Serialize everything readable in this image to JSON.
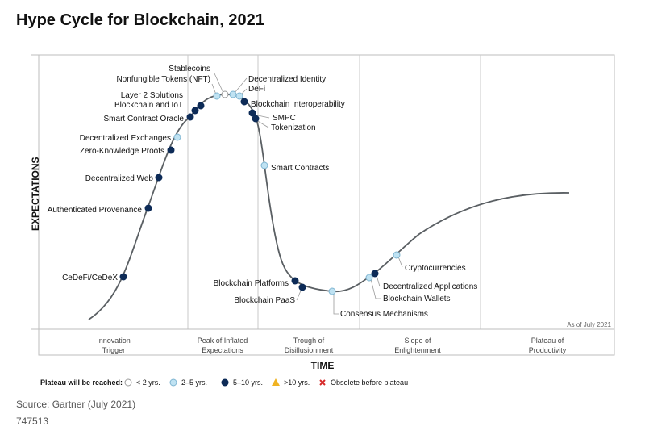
{
  "title": "Hype Cycle for Blockchain, 2021",
  "source": "Source: Gartner (July 2021)",
  "doc_id": "747513",
  "as_of": "As of July 2021",
  "colors": {
    "curve": "#5a5f63",
    "dark": "#0d2b57",
    "light": "#bfe2f2",
    "light_stroke": "#7fb5d1",
    "divider": "#c9c9c9",
    "amber": "#f0b323",
    "red": "#d62828"
  },
  "chart_data": {
    "type": "hype-cycle",
    "ylabel": "EXPECTATIONS",
    "xlabel": "TIME",
    "phases": [
      {
        "line1": "Innovation",
        "line2": "Trigger"
      },
      {
        "line1": "Peak of Inflated",
        "line2": "Expectations"
      },
      {
        "line1": "Trough of",
        "line2": "Disillusionment"
      },
      {
        "line1": "Slope of",
        "line2": "Enlightenment"
      },
      {
        "line1": "Plateau of",
        "line2": "Productivity"
      }
    ],
    "legend": {
      "title": "Plateau will be reached:",
      "items": [
        {
          "key": "lt2",
          "label": "< 2 yrs."
        },
        {
          "key": "2to5",
          "label": "2–5 yrs."
        },
        {
          "key": "5to10",
          "label": "5–10 yrs."
        },
        {
          "key": "gt10",
          "label": ">10 yrs."
        },
        {
          "key": "obsolete",
          "label": "Obsolete before plateau"
        }
      ]
    },
    "technologies": [
      {
        "name": "CeDeFi/CeDeX",
        "phase": "Innovation Trigger",
        "plateau": "5to10"
      },
      {
        "name": "Authenticated Provenance",
        "phase": "Innovation Trigger",
        "plateau": "5to10"
      },
      {
        "name": "Decentralized Web",
        "phase": "Innovation Trigger",
        "plateau": "5to10"
      },
      {
        "name": "Zero-Knowledge Proofs",
        "phase": "Innovation Trigger",
        "plateau": "5to10"
      },
      {
        "name": "Decentralized Exchanges",
        "phase": "Innovation Trigger",
        "plateau": "2to5"
      },
      {
        "name": "Smart Contract Oracle",
        "phase": "Peak of Inflated Expectations",
        "plateau": "5to10"
      },
      {
        "name": "Blockchain and IoT",
        "phase": "Peak of Inflated Expectations",
        "plateau": "5to10"
      },
      {
        "name": "Layer 2 Solutions",
        "phase": "Peak of Inflated Expectations",
        "plateau": "5to10"
      },
      {
        "name": "Nonfungible Tokens (NFT)",
        "phase": "Peak of Inflated Expectations",
        "plateau": "2to5"
      },
      {
        "name": "Stablecoins",
        "phase": "Peak of Inflated Expectations",
        "plateau": "lt2"
      },
      {
        "name": "Decentralized Identity",
        "phase": "Peak of Inflated Expectations",
        "plateau": "2to5"
      },
      {
        "name": "DeFi",
        "phase": "Peak of Inflated Expectations",
        "plateau": "2to5"
      },
      {
        "name": "Blockchain Interoperability",
        "phase": "Peak of Inflated Expectations",
        "plateau": "5to10"
      },
      {
        "name": "SMPC",
        "phase": "Peak of Inflated Expectations",
        "plateau": "5to10"
      },
      {
        "name": "Tokenization",
        "phase": "Peak of Inflated Expectations",
        "plateau": "5to10"
      },
      {
        "name": "Smart Contracts",
        "phase": "Trough of Disillusionment",
        "plateau": "2to5"
      },
      {
        "name": "Blockchain Platforms",
        "phase": "Trough of Disillusionment",
        "plateau": "5to10"
      },
      {
        "name": "Blockchain PaaS",
        "phase": "Trough of Disillusionment",
        "plateau": "5to10"
      },
      {
        "name": "Consensus Mechanisms",
        "phase": "Trough of Disillusionment",
        "plateau": "2to5"
      },
      {
        "name": "Blockchain Wallets",
        "phase": "Slope of Enlightenment",
        "plateau": "2to5"
      },
      {
        "name": "Decentralized Applications",
        "phase": "Slope of Enlightenment",
        "plateau": "5to10"
      },
      {
        "name": "Cryptocurrencies",
        "phase": "Slope of Enlightenment",
        "plateau": "2to5"
      }
    ]
  }
}
